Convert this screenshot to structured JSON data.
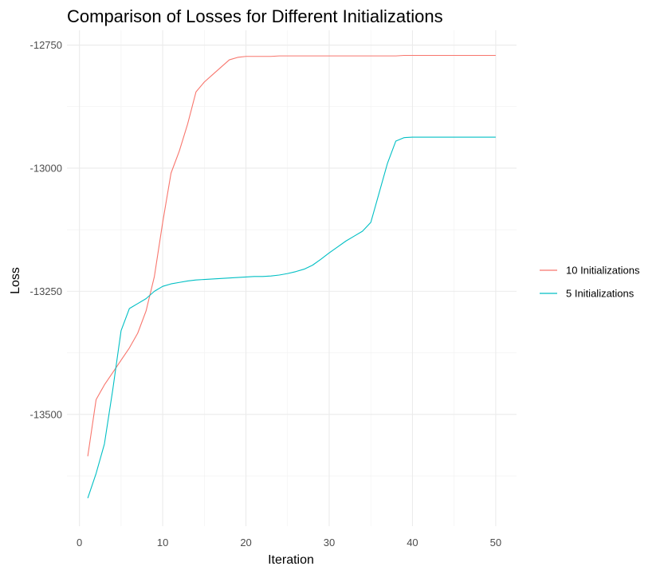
{
  "chart_data": {
    "type": "line",
    "title": "Comparison of Losses for Different Initializations",
    "xlabel": "Iteration",
    "ylabel": "Loss",
    "xlim": [
      -1.5,
      52.5
    ],
    "ylim": [
      -13727,
      -12720
    ],
    "x_ticks": [
      0,
      10,
      20,
      30,
      40,
      50
    ],
    "x_tick_labels": [
      "0",
      "10",
      "20",
      "30",
      "40",
      "50"
    ],
    "y_ticks": [
      -12750,
      -13000,
      -13250,
      -13500
    ],
    "y_tick_labels": [
      "-12750",
      "-13000",
      "-13250",
      "-13500"
    ],
    "grid": true,
    "legend_position": "right",
    "x": [
      1,
      2,
      3,
      4,
      5,
      6,
      7,
      8,
      9,
      10,
      11,
      12,
      13,
      14,
      15,
      16,
      17,
      18,
      19,
      20,
      21,
      22,
      23,
      24,
      25,
      26,
      27,
      28,
      29,
      30,
      31,
      32,
      33,
      34,
      35,
      36,
      37,
      38,
      39,
      40,
      41,
      42,
      43,
      44,
      45,
      46,
      47,
      48,
      49,
      50
    ],
    "series": [
      {
        "name": "10 Initializations",
        "color": "#F8766D",
        "values": [
          -13585,
          -13470,
          -13440,
          -13415,
          -13390,
          -13365,
          -13335,
          -13290,
          -13220,
          -13110,
          -13010,
          -12965,
          -12910,
          -12845,
          -12825,
          -12810,
          -12795,
          -12780,
          -12775,
          -12773,
          -12773,
          -12773,
          -12773,
          -12772,
          -12772,
          -12772,
          -12772,
          -12772,
          -12772,
          -12772,
          -12772,
          -12772,
          -12772,
          -12772,
          -12772,
          -12772,
          -12772,
          -12772,
          -12771,
          -12771,
          -12771,
          -12771,
          -12771,
          -12771,
          -12771,
          -12771,
          -12771,
          -12771,
          -12771,
          -12771
        ]
      },
      {
        "name": "5 Initializations",
        "color": "#00BFC4",
        "values": [
          -13670,
          -13620,
          -13560,
          -13450,
          -13330,
          -13285,
          -13275,
          -13265,
          -13250,
          -13240,
          -13235,
          -13232,
          -13229,
          -13227,
          -13226,
          -13225,
          -13224,
          -13223,
          -13222,
          -13221,
          -13220,
          -13220,
          -13219,
          -13217,
          -13214,
          -13210,
          -13205,
          -13197,
          -13185,
          -13172,
          -13160,
          -13148,
          -13138,
          -13128,
          -13110,
          -13050,
          -12990,
          -12945,
          -12938,
          -12937,
          -12937,
          -12937,
          -12937,
          -12937,
          -12937,
          -12937,
          -12937,
          -12937,
          -12937,
          -12937
        ]
      }
    ]
  }
}
